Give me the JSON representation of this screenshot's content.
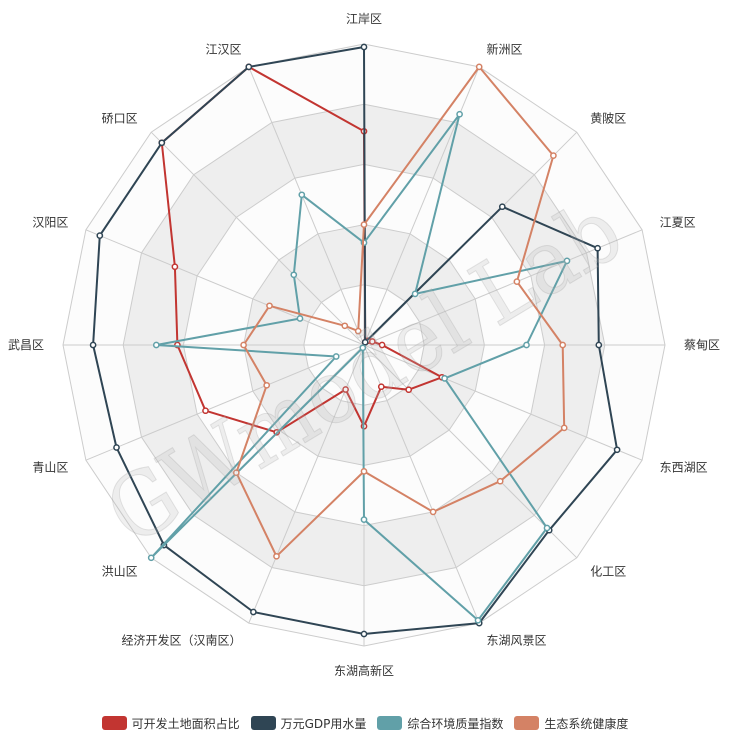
{
  "chart_data": {
    "type": "radar",
    "range": [
      0,
      100
    ],
    "grid": true,
    "legend_position": "bottom",
    "indicators": [
      {
        "name": "江岸区"
      },
      {
        "name": "新洲区"
      },
      {
        "name": "黄陂区"
      },
      {
        "name": "江夏区"
      },
      {
        "name": "蔡甸区"
      },
      {
        "name": "东西湖区"
      },
      {
        "name": "化工区"
      },
      {
        "name": "东湖风景区"
      },
      {
        "name": "东湖高新区"
      },
      {
        "name": "经济开发区（汉南区）"
      },
      {
        "name": "洪山区"
      },
      {
        "name": "青山区"
      },
      {
        "name": "武昌区"
      },
      {
        "name": "汉阳区"
      },
      {
        "name": "硚口区"
      },
      {
        "name": "江汉区"
      }
    ],
    "series": [
      {
        "name": "可开发土地面积占比",
        "color": "#c23531",
        "values": [
          71,
          1,
          2,
          3,
          6,
          28,
          21,
          15,
          27,
          16,
          41,
          57,
          62,
          68,
          95,
          100
        ]
      },
      {
        "name": "万元GDP用水量",
        "color": "#2f4554",
        "values": [
          99,
          1,
          65,
          84,
          78,
          91,
          87,
          100,
          96,
          96,
          94,
          89,
          90,
          95,
          95,
          100
        ]
      },
      {
        "name": "综合环境质量指数",
        "color": "#61a0a8",
        "values": [
          34,
          83,
          24,
          73,
          54,
          29,
          86,
          99,
          58,
          1,
          100,
          10,
          69,
          23,
          33,
          54
        ]
      },
      {
        "name": "生态系统健康度",
        "color": "#d48265",
        "values": [
          40,
          100,
          89,
          55,
          66,
          72,
          64,
          60,
          42,
          76,
          60,
          35,
          40,
          34,
          9,
          5
        ]
      }
    ]
  },
  "watermark": "GWmodel Lab"
}
